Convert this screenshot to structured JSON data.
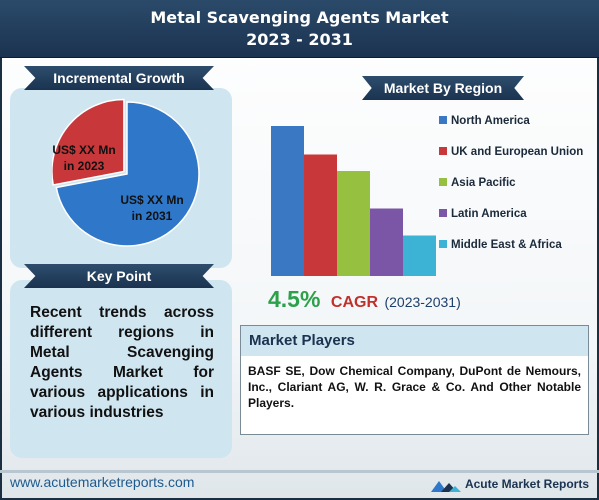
{
  "header": {
    "title_line1": "Metal Scavenging Agents Market",
    "title_line2": "2023 - 2031"
  },
  "incremental": {
    "ribbon": "Incremental Growth",
    "label_2023": "US$ XX Mn in 2023",
    "label_2031": "US$ XX Mn in 2031"
  },
  "key_point": {
    "ribbon": "Key Point",
    "text": "Recent trends across different regions in Metal Scavenging Agents Market for various applications in various industries"
  },
  "region": {
    "ribbon": "Market By Region"
  },
  "cagr": {
    "value": "4.5%",
    "label": "CAGR",
    "years": "(2023-2031)"
  },
  "players": {
    "heading": "Market Players",
    "text": "BASF SE, Dow Chemical Company, DuPont de Nemours, Inc., Clariant AG, W. R. Grace & Co. And Other Notable Players."
  },
  "footer": {
    "url": "www.acutemarketreports.com",
    "brand": "Acute Market Reports"
  },
  "chart_data": [
    {
      "type": "pie",
      "categories": [
        "2023",
        "2031"
      ],
      "values": [
        28,
        72
      ],
      "labels": [
        "US$ XX Mn in 2023",
        "US$ XX Mn in 2031"
      ],
      "colors": [
        "#c8383a",
        "#2f77c8"
      ]
    },
    {
      "type": "bar",
      "categories": [
        "North America",
        "UK and European Union",
        "Asia Pacific",
        "Latin America",
        "Middle East & Africa"
      ],
      "values": [
        100,
        81,
        70,
        45,
        27
      ],
      "ylim": [
        0,
        100
      ],
      "colors": [
        "#3b78c4",
        "#c8383a",
        "#96c03f",
        "#7b56a6",
        "#3cb3d5"
      ],
      "legend": "right"
    }
  ]
}
